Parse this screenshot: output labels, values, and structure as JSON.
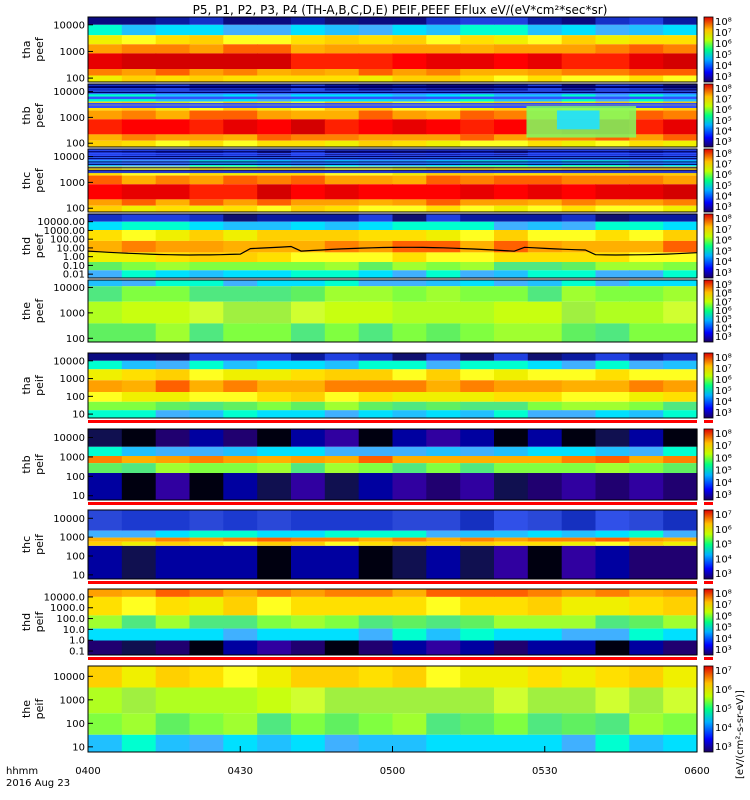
{
  "title": "P5, P1, P2, P3, P4 (TH-A,B,C,D,E) PEIF,PEEF EFlux eV/(eV*cm²*sec*sr)",
  "colorbar_units": "[eV/(cm²-s-sr-eV)]",
  "time_axis": {
    "label_top": "hhmm",
    "label_bottom": "2016 Aug 23",
    "ticks": [
      "0400",
      "0430",
      "0500",
      "0530",
      "0600"
    ]
  },
  "chart_data": {
    "type": "heatmap",
    "x_range": [
      "0400",
      "0600"
    ],
    "panels": [
      {
        "id": "tha-peef",
        "ylabel": [
          "tha",
          "peef"
        ],
        "yticks": [
          "10000",
          "1000",
          "100"
        ],
        "cbar_ticks": [
          "10⁸",
          "10⁷",
          "10⁶",
          "10⁵",
          "10⁴",
          "10³"
        ],
        "band": "red",
        "overlay_line": false
      },
      {
        "id": "thb-peef",
        "ylabel": [
          "thb",
          "peef"
        ],
        "yticks": [
          "10000",
          "1000",
          "100"
        ],
        "cbar_ticks": [
          "10⁸",
          "10⁷",
          "10⁶",
          "10⁵",
          "10⁴",
          "10³"
        ],
        "band": "red",
        "overlay_line": false
      },
      {
        "id": "thc-peef",
        "ylabel": [
          "thc",
          "peef"
        ],
        "yticks": [
          "10000",
          "1000",
          "100"
        ],
        "cbar_ticks": [
          "10⁸",
          "10⁷",
          "10⁶",
          "10⁵",
          "10⁴",
          "10³"
        ],
        "band": "red",
        "overlay_line": false
      },
      {
        "id": "thd-peef",
        "ylabel": [
          "thd",
          "peef"
        ],
        "yticks": [
          "10000.00",
          "1000.00",
          "100.00",
          "10.00",
          "1.00",
          "0.10",
          "0.01"
        ],
        "cbar_ticks": [
          "10⁸",
          "10⁷",
          "10⁶",
          "10⁵",
          "10⁴",
          "10³"
        ],
        "band": "orange",
        "overlay_line": true
      },
      {
        "id": "the-peef",
        "ylabel": [
          "the",
          "peef"
        ],
        "yticks": [
          "10000",
          "1000",
          "100"
        ],
        "cbar_ticks": [
          "10⁹",
          "10⁸",
          "10⁷",
          "10⁶",
          "10⁵",
          "10⁴",
          "10³"
        ],
        "band": "green",
        "overlay_line": false
      },
      {
        "id": "tha-peif",
        "ylabel": [
          "tha",
          "peif"
        ],
        "yticks": [
          "10000",
          "1000",
          "100",
          "10"
        ],
        "cbar_ticks": [
          "10⁸",
          "10⁷",
          "10⁶",
          "10⁵",
          "10⁴",
          "10³"
        ],
        "band": "orange",
        "overlay_line": false
      },
      {
        "id": "thb-peif",
        "ylabel": [
          "thb",
          "peif"
        ],
        "yticks": [
          "10000",
          "1000",
          "100",
          "10"
        ],
        "cbar_ticks": [
          "10⁸",
          "10⁷",
          "10⁶",
          "10⁵",
          "10⁴",
          "10³"
        ],
        "band": "lowcyan",
        "overlay_line": false
      },
      {
        "id": "thc-peif",
        "ylabel": [
          "thc",
          "peif"
        ],
        "yticks": [
          "10000",
          "1000",
          "100",
          "10"
        ],
        "cbar_ticks": [
          "10⁷",
          "10⁶",
          "10⁵",
          "10⁴",
          "10³"
        ],
        "band": "thin",
        "overlay_line": false
      },
      {
        "id": "thd-peif",
        "ylabel": [
          "thd",
          "peif"
        ],
        "yticks": [
          "10000.0",
          "1000.0",
          "100.0",
          "10.0",
          "1.0",
          "0.1"
        ],
        "cbar_ticks": [
          "10⁸",
          "10⁷",
          "10⁶",
          "10⁵",
          "10⁴",
          "10³"
        ],
        "band": "yellow",
        "overlay_line": false
      },
      {
        "id": "the-peif",
        "ylabel": [
          "the",
          "peif"
        ],
        "yticks": [
          "10000",
          "1000",
          "100",
          "10"
        ],
        "cbar_ticks": [
          "10⁷",
          "10⁶",
          "10⁵",
          "10⁴",
          "10³"
        ],
        "band": "yellowgreen",
        "overlay_line": false
      }
    ]
  }
}
